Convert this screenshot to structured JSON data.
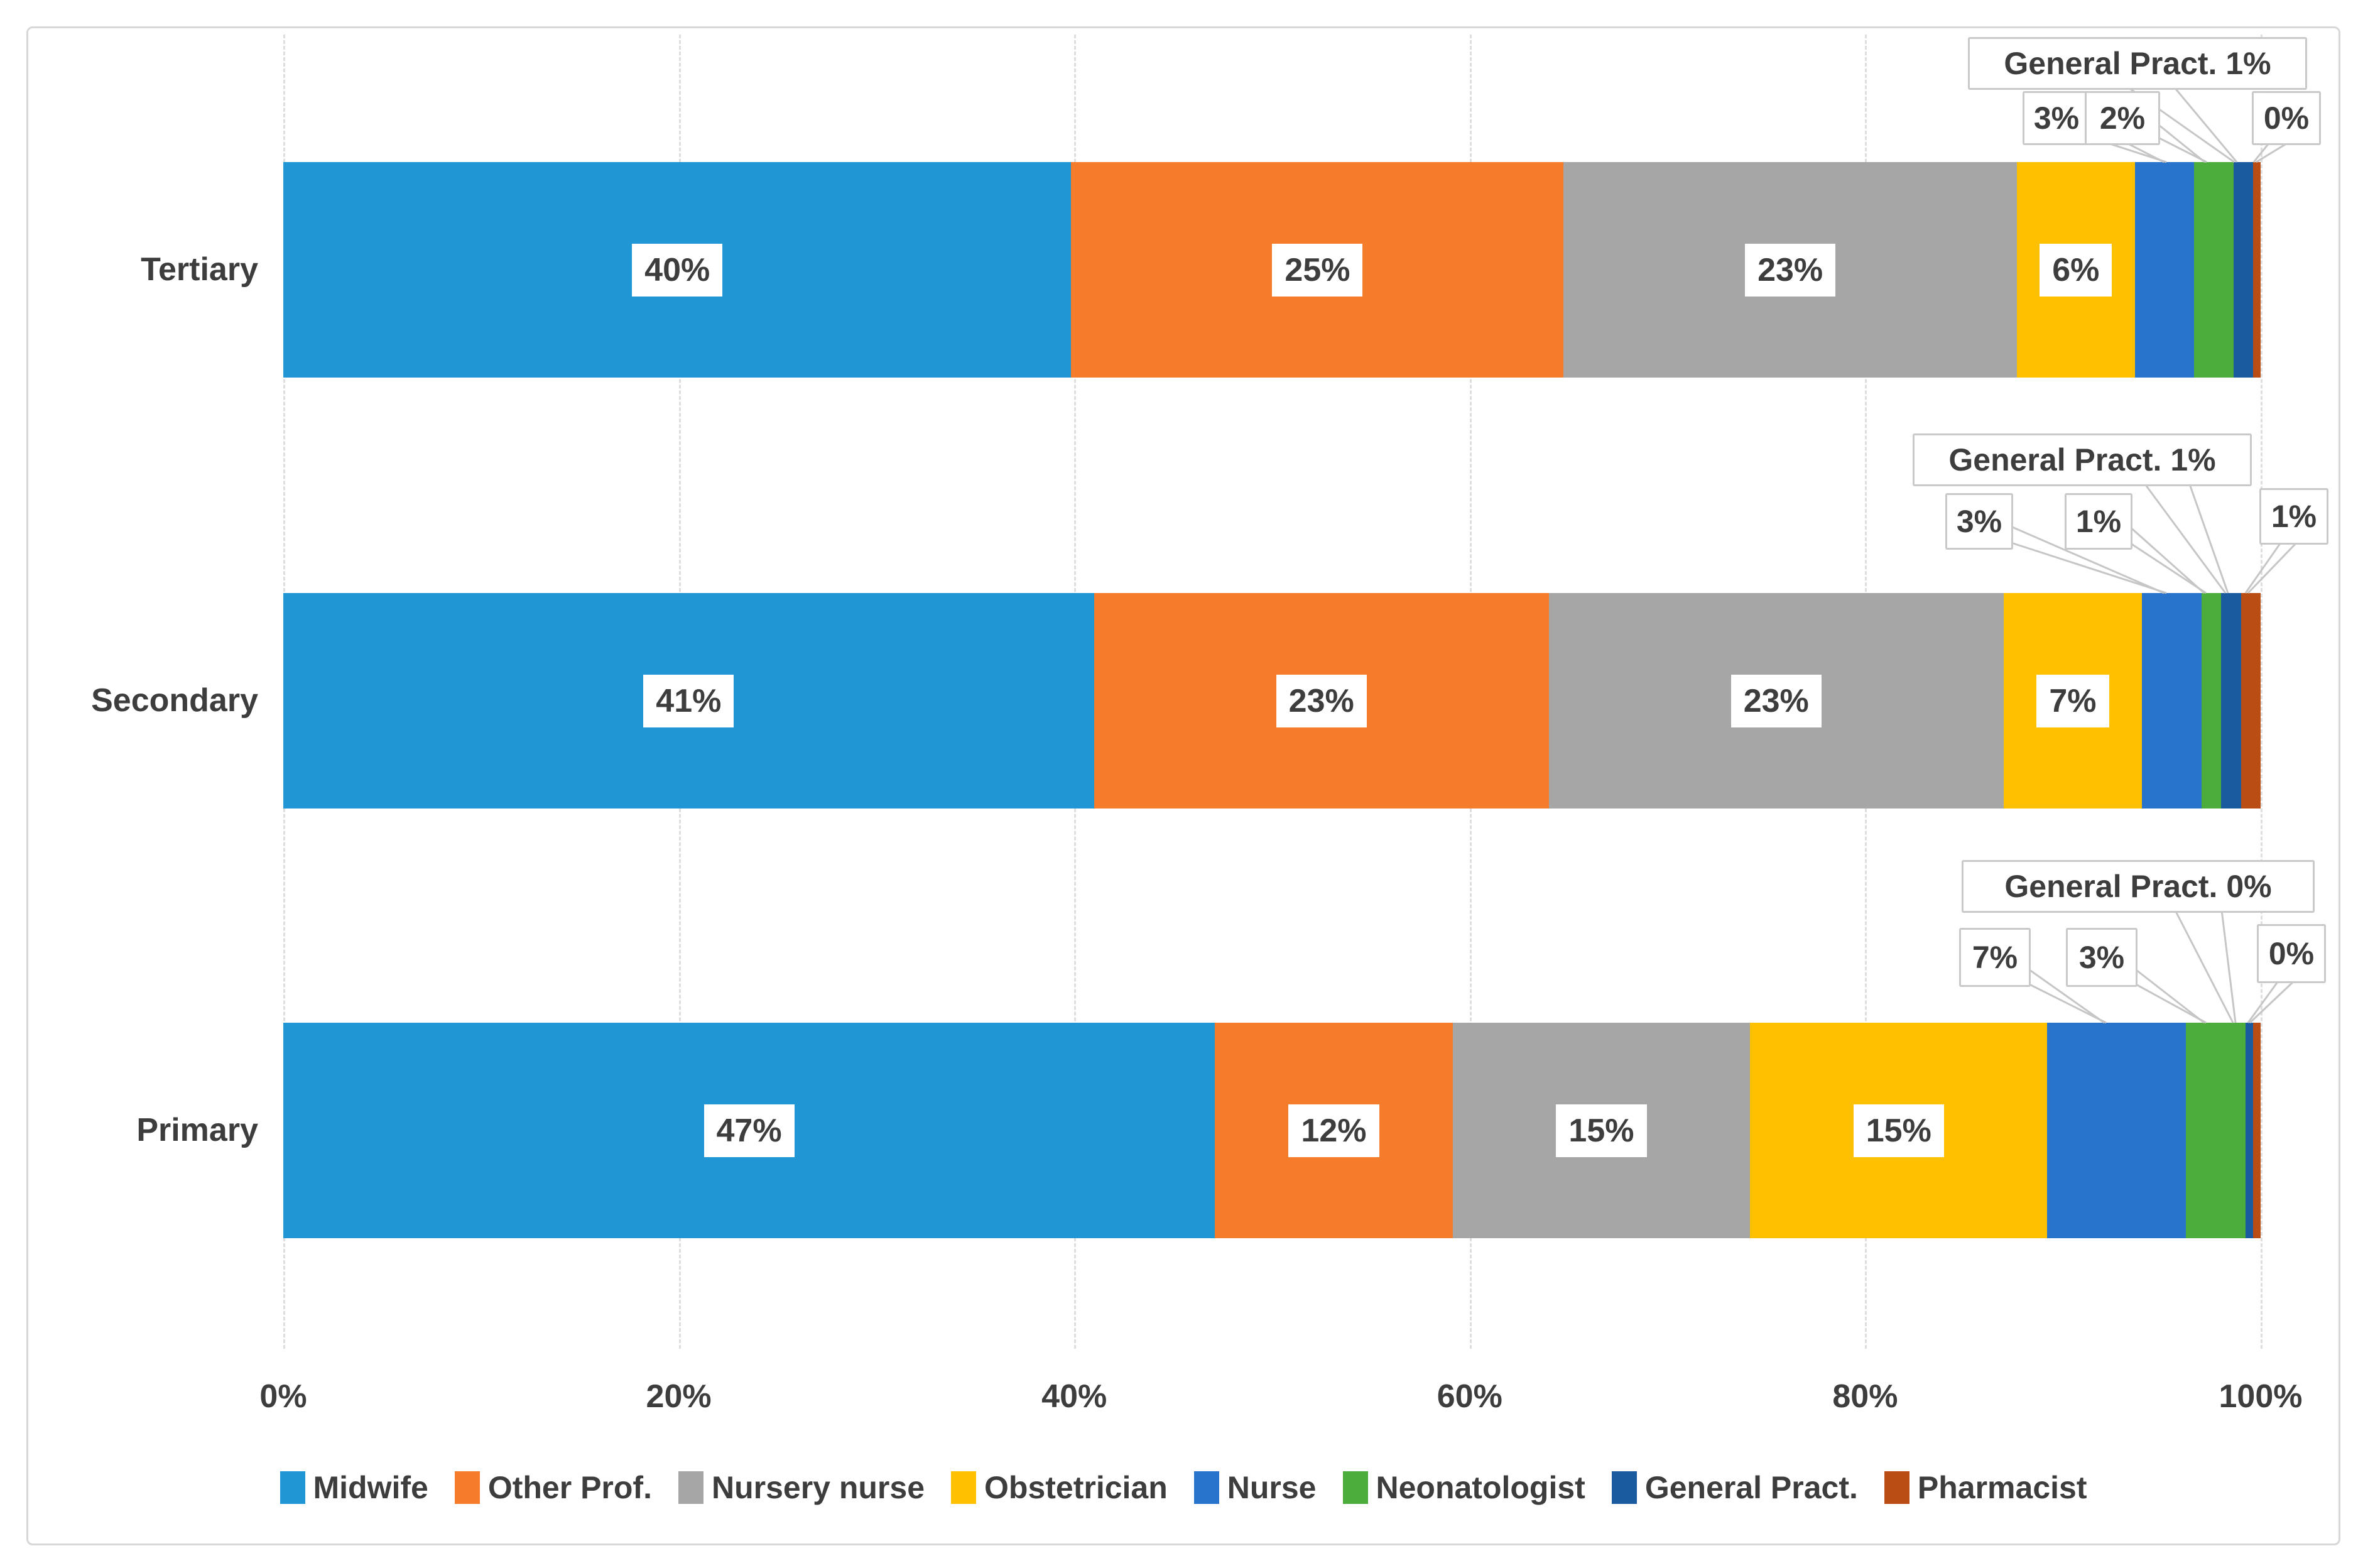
{
  "chart_data": {
    "type": "bar",
    "orientation": "horizontal",
    "stacked": true,
    "unit": "%",
    "categories": [
      "Tertiary",
      "Secondary",
      "Primary"
    ],
    "series": [
      {
        "name": "Midwife",
        "color": "#2097d4",
        "values": [
          40,
          41,
          47
        ]
      },
      {
        "name": "Other Prof.",
        "color": "#f57c2b",
        "values": [
          25,
          23,
          12
        ]
      },
      {
        "name": "Nursery nurse",
        "color": "#a6a6a6",
        "values": [
          23,
          23,
          15
        ]
      },
      {
        "name": "Obstetrician",
        "color": "#ffc000",
        "values": [
          6,
          7,
          15
        ]
      },
      {
        "name": "Nurse",
        "color": "#2873cc",
        "values": [
          3,
          3,
          7
        ]
      },
      {
        "name": "Neonatologist",
        "color": "#4cac3c",
        "values": [
          2,
          1,
          3
        ]
      },
      {
        "name": "General Pract.",
        "color": "#1a5a9e",
        "values": [
          1,
          1,
          0
        ]
      },
      {
        "name": "Pharmacist",
        "color": "#b94d14",
        "values": [
          0,
          1,
          0
        ]
      }
    ],
    "x_ticks": [
      "0%",
      "20%",
      "40%",
      "60%",
      "80%",
      "100%"
    ],
    "xlim": [
      0,
      100
    ],
    "grid": "vertical-dashed",
    "legend_position": "bottom",
    "inside_labels_series": [
      "Midwife",
      "Other Prof.",
      "Nursery nurse",
      "Obstetrician"
    ]
  },
  "callouts": {
    "tertiary": [
      {
        "series": "General Pract.",
        "text": "General Pract. 1%"
      },
      {
        "series": "Nurse",
        "text": "3%"
      },
      {
        "series": "Neonatologist",
        "text": "2%"
      },
      {
        "series": "Pharmacist",
        "text": "0%"
      }
    ],
    "secondary": [
      {
        "series": "General Pract.",
        "text": "General Pract. 1%"
      },
      {
        "series": "Nurse",
        "text": "3%"
      },
      {
        "series": "Neonatologist",
        "text": "1%"
      },
      {
        "series": "Pharmacist",
        "text": "1%"
      }
    ],
    "primary": [
      {
        "series": "General Pract.",
        "text": "General Pract. 0%"
      },
      {
        "series": "Nurse",
        "text": "7%"
      },
      {
        "series": "Neonatologist",
        "text": "3%"
      },
      {
        "series": "Pharmacist",
        "text": "0%"
      }
    ]
  }
}
